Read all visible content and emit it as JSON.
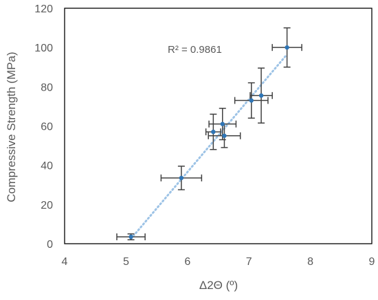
{
  "chart_data": {
    "type": "scatter",
    "xlabel": "Δ2Θ (º)",
    "ylabel": "Compressive Strength (MPa)",
    "xlim": [
      4,
      9
    ],
    "ylim": [
      0,
      120
    ],
    "x_ticks": [
      4,
      5,
      6,
      7,
      8,
      9
    ],
    "y_ticks": [
      0,
      20,
      40,
      60,
      80,
      100,
      120
    ],
    "grid": false,
    "annotation": "R² = 0.9861",
    "trendline": {
      "style": "dotted",
      "color": "#9dc3e6",
      "from": [
        5.08,
        2.5
      ],
      "to": [
        7.62,
        96.5
      ]
    },
    "colors": {
      "marker": "#2e75b6",
      "error_bar": "#404040",
      "axis": "#000000"
    },
    "points": [
      {
        "x": 5.08,
        "y": 3.5,
        "x_err": 0.23,
        "y_err": 1.5
      },
      {
        "x": 5.9,
        "y": 33.5,
        "x_err": 0.33,
        "y_err": 6
      },
      {
        "x": 6.42,
        "y": 57,
        "x_err": 0.12,
        "y_err": 9
      },
      {
        "x": 6.57,
        "y": 61,
        "x_err": 0.22,
        "y_err": 8
      },
      {
        "x": 6.6,
        "y": 55,
        "x_err": 0.26,
        "y_err": 6
      },
      {
        "x": 7.04,
        "y": 73,
        "x_err": 0.27,
        "y_err": 9
      },
      {
        "x": 7.2,
        "y": 75.5,
        "x_err": 0.18,
        "y_err": 14
      },
      {
        "x": 7.62,
        "y": 100,
        "x_err": 0.24,
        "y_err": 10
      }
    ]
  }
}
